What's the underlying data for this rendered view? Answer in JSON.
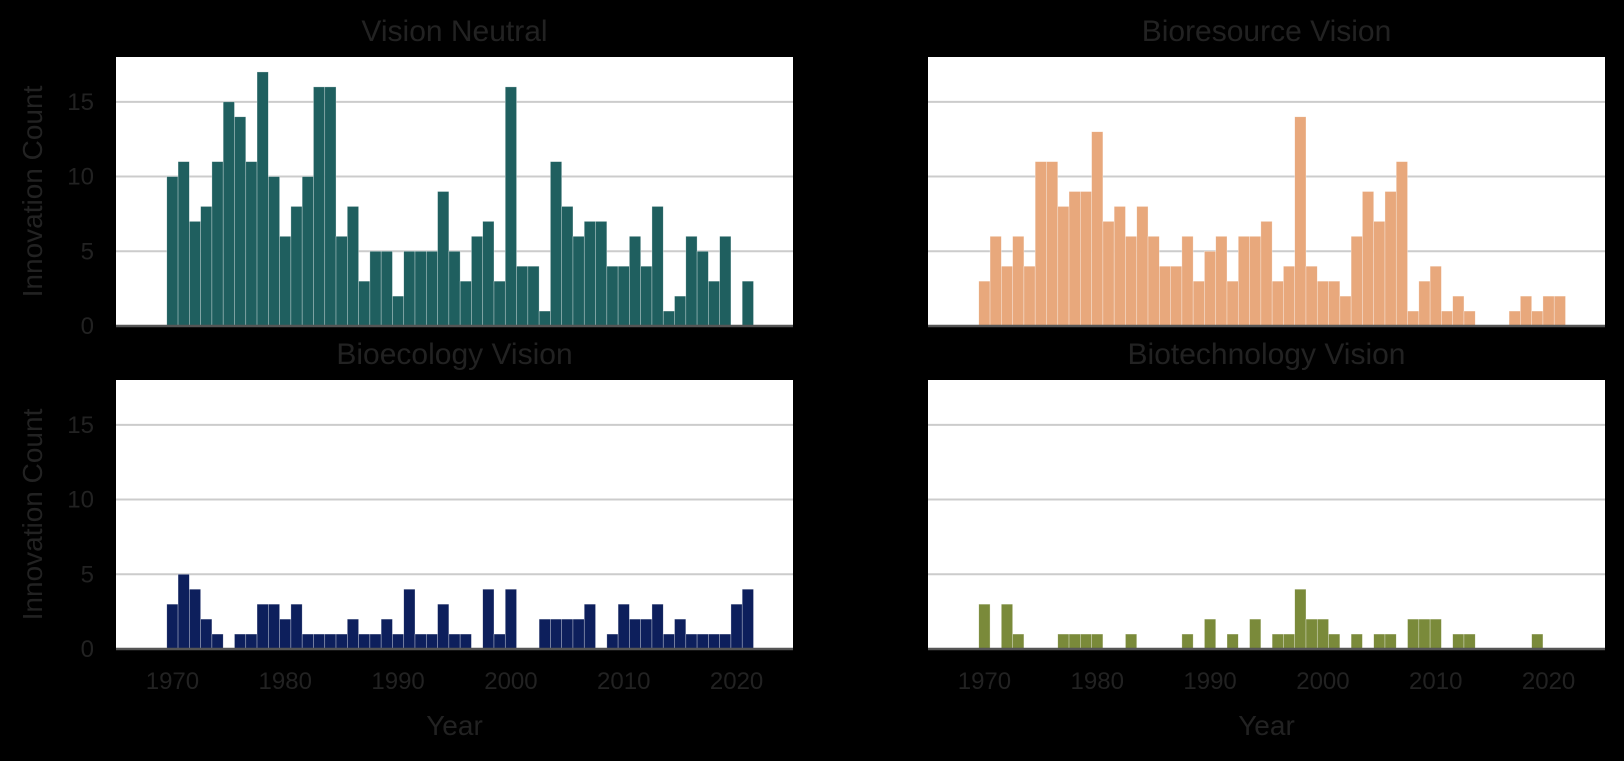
{
  "figure": {
    "xlabel": "Year",
    "ylabel": "Innovation Count"
  },
  "chart_data": [
    {
      "type": "bar",
      "title": "Vision Neutral",
      "color": "#1f5f5f",
      "xlim": [
        1965,
        2025
      ],
      "ylim": [
        0,
        18
      ],
      "xticks": [
        1970,
        1980,
        1990,
        2000,
        2010,
        2020
      ],
      "yticks": [
        0,
        5,
        10,
        15
      ],
      "grid": "y",
      "ylabel": "Innovation Count",
      "xlabel": "",
      "x": [
        1970,
        1971,
        1972,
        1973,
        1974,
        1975,
        1976,
        1977,
        1978,
        1979,
        1980,
        1981,
        1982,
        1983,
        1984,
        1985,
        1986,
        1987,
        1988,
        1989,
        1990,
        1991,
        1992,
        1993,
        1994,
        1995,
        1996,
        1997,
        1998,
        1999,
        2000,
        2001,
        2002,
        2003,
        2004,
        2005,
        2006,
        2007,
        2008,
        2009,
        2010,
        2011,
        2012,
        2013,
        2014,
        2015,
        2016,
        2017,
        2018,
        2019,
        2020,
        2021
      ],
      "values": [
        10,
        11,
        7,
        8,
        11,
        15,
        14,
        11,
        17,
        10,
        6,
        8,
        10,
        16,
        16,
        6,
        8,
        3,
        5,
        5,
        2,
        5,
        5,
        5,
        9,
        5,
        3,
        6,
        7,
        3,
        16,
        4,
        4,
        1,
        11,
        8,
        6,
        7,
        7,
        4,
        4,
        6,
        4,
        8,
        1,
        2,
        6,
        5,
        3,
        6,
        0,
        3
      ]
    },
    {
      "type": "bar",
      "title": "Bioresource Vision",
      "color": "#e8a87c",
      "xlim": [
        1965,
        2025
      ],
      "ylim": [
        0,
        18
      ],
      "xticks": [
        1970,
        1980,
        1990,
        2000,
        2010,
        2020
      ],
      "yticks": [
        0,
        5,
        10,
        15
      ],
      "grid": "y",
      "ylabel": "",
      "xlabel": "",
      "x": [
        1970,
        1971,
        1972,
        1973,
        1974,
        1975,
        1976,
        1977,
        1978,
        1979,
        1980,
        1981,
        1982,
        1983,
        1984,
        1985,
        1986,
        1987,
        1988,
        1989,
        1990,
        1991,
        1992,
        1993,
        1994,
        1995,
        1996,
        1997,
        1998,
        1999,
        2000,
        2001,
        2002,
        2003,
        2004,
        2005,
        2006,
        2007,
        2008,
        2009,
        2010,
        2011,
        2012,
        2013,
        2014,
        2015,
        2016,
        2017,
        2018,
        2019,
        2020,
        2021
      ],
      "values": [
        3,
        6,
        4,
        6,
        4,
        11,
        11,
        8,
        9,
        9,
        13,
        7,
        8,
        6,
        8,
        6,
        4,
        4,
        6,
        3,
        5,
        6,
        3,
        6,
        6,
        7,
        3,
        4,
        14,
        4,
        3,
        3,
        2,
        6,
        9,
        7,
        9,
        11,
        1,
        3,
        4,
        1,
        2,
        1,
        0,
        0,
        0,
        1,
        2,
        1,
        2,
        2
      ]
    },
    {
      "type": "bar",
      "title": "Bioecology Vision",
      "color": "#0d1f5c",
      "xlim": [
        1965,
        2025
      ],
      "ylim": [
        0,
        18
      ],
      "xticks": [
        1970,
        1980,
        1990,
        2000,
        2010,
        2020
      ],
      "yticks": [
        0,
        5,
        10,
        15
      ],
      "grid": "y",
      "ylabel": "Innovation Count",
      "xlabel": "Year",
      "x": [
        1970,
        1971,
        1972,
        1973,
        1974,
        1975,
        1976,
        1977,
        1978,
        1979,
        1980,
        1981,
        1982,
        1983,
        1984,
        1985,
        1986,
        1987,
        1988,
        1989,
        1990,
        1991,
        1992,
        1993,
        1994,
        1995,
        1996,
        1997,
        1998,
        1999,
        2000,
        2001,
        2002,
        2003,
        2004,
        2005,
        2006,
        2007,
        2008,
        2009,
        2010,
        2011,
        2012,
        2013,
        2014,
        2015,
        2016,
        2017,
        2018,
        2019,
        2020,
        2021
      ],
      "values": [
        3,
        5,
        4,
        2,
        1,
        0,
        1,
        1,
        3,
        3,
        2,
        3,
        1,
        1,
        1,
        1,
        2,
        1,
        1,
        2,
        1,
        4,
        1,
        1,
        3,
        1,
        1,
        0,
        4,
        1,
        4,
        0,
        0,
        2,
        2,
        2,
        2,
        3,
        0,
        1,
        3,
        2,
        2,
        3,
        1,
        2,
        1,
        1,
        1,
        1,
        3,
        4
      ]
    },
    {
      "type": "bar",
      "title": "Biotechnology Vision",
      "color": "#7a8a3a",
      "xlim": [
        1965,
        2025
      ],
      "ylim": [
        0,
        18
      ],
      "xticks": [
        1970,
        1980,
        1990,
        2000,
        2010,
        2020
      ],
      "yticks": [
        0,
        5,
        10,
        15
      ],
      "grid": "y",
      "ylabel": "",
      "xlabel": "Year",
      "x": [
        1970,
        1971,
        1972,
        1973,
        1974,
        1975,
        1976,
        1977,
        1978,
        1979,
        1980,
        1981,
        1982,
        1983,
        1984,
        1985,
        1986,
        1987,
        1988,
        1989,
        1990,
        1991,
        1992,
        1993,
        1994,
        1995,
        1996,
        1997,
        1998,
        1999,
        2000,
        2001,
        2002,
        2003,
        2004,
        2005,
        2006,
        2007,
        2008,
        2009,
        2010,
        2011,
        2012,
        2013,
        2014,
        2015,
        2016,
        2017,
        2018,
        2019,
        2020,
        2021
      ],
      "values": [
        3,
        0,
        3,
        1,
        0,
        0,
        0,
        1,
        1,
        1,
        1,
        0,
        0,
        1,
        0,
        0,
        0,
        0,
        1,
        0,
        2,
        0,
        1,
        0,
        2,
        0,
        1,
        1,
        4,
        2,
        2,
        1,
        0,
        1,
        0,
        1,
        1,
        0,
        2,
        2,
        2,
        0,
        1,
        1,
        0,
        0,
        0,
        0,
        0,
        1,
        0,
        0
      ]
    }
  ]
}
